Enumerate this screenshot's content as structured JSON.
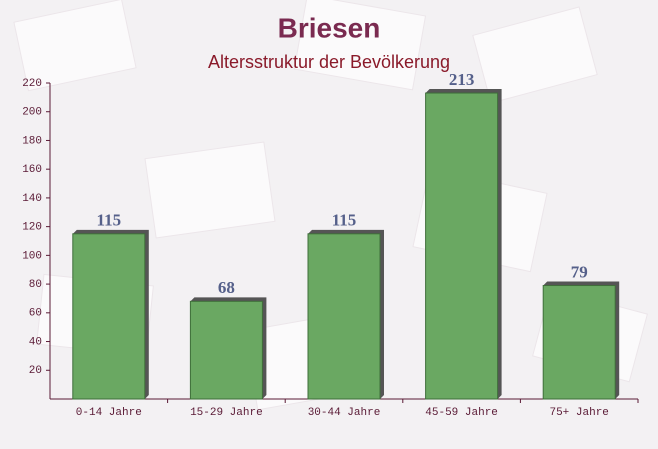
{
  "chart_data": {
    "type": "bar",
    "title": "Briesen",
    "subtitle": "Altersstruktur der Bevölkerung",
    "categories": [
      "0-14 Jahre",
      "15-29 Jahre",
      "30-44 Jahre",
      "45-59 Jahre",
      "75+ Jahre"
    ],
    "values": [
      115,
      68,
      115,
      213,
      79
    ],
    "color": "#6aa862",
    "ylim": [
      0,
      220
    ],
    "yticks": [
      20,
      40,
      60,
      80,
      100,
      120,
      140,
      160,
      180,
      200,
      220
    ]
  }
}
